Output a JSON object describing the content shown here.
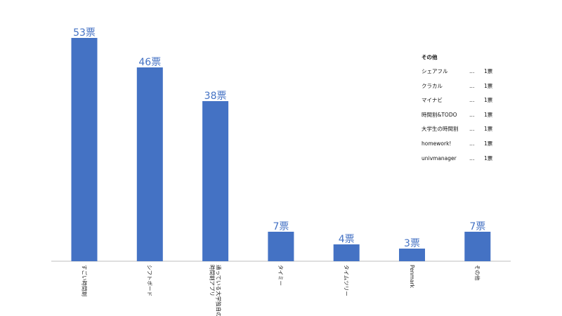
{
  "chart_data": {
    "type": "bar",
    "categories": [
      "すごい時間割",
      "シフトボード",
      "通っている大学独自の時間割アプリ",
      "タイミー",
      "タイムツリー",
      "Penmark",
      "その他"
    ],
    "category_lines": [
      [
        "すごい時間割"
      ],
      [
        "シフトボード"
      ],
      [
        "通っている大学独自の",
        "時間割アプリ"
      ],
      [
        "タイミー"
      ],
      [
        "タイムツリー"
      ],
      [
        "Penmark"
      ],
      [
        "その他"
      ]
    ],
    "values": [
      53,
      46,
      38,
      7,
      4,
      3,
      7
    ],
    "value_labels": [
      "53票",
      "46票",
      "38票",
      "7票",
      "4票",
      "3票",
      "7票"
    ],
    "ylim": [
      0,
      60
    ],
    "bar_color": "#4472c4",
    "axis_color": "#bfbfbf",
    "grid": false,
    "legend_placement": "top-right"
  },
  "others_box": {
    "title": "その他",
    "items": [
      {
        "name": "シェアフル",
        "dots": "…",
        "count": "1票"
      },
      {
        "name": "クラカル",
        "dots": "…",
        "count": "1票"
      },
      {
        "name": "マイナビ",
        "dots": "…",
        "count": "1票"
      },
      {
        "name": "時間割&TODO",
        "dots": "…",
        "count": "1票"
      },
      {
        "name": "大学生の時間割",
        "dots": "…",
        "count": "1票"
      },
      {
        "name": "homework!",
        "dots": "…",
        "count": "1票"
      },
      {
        "name": "univmanager",
        "dots": "…",
        "count": "1票"
      }
    ]
  }
}
